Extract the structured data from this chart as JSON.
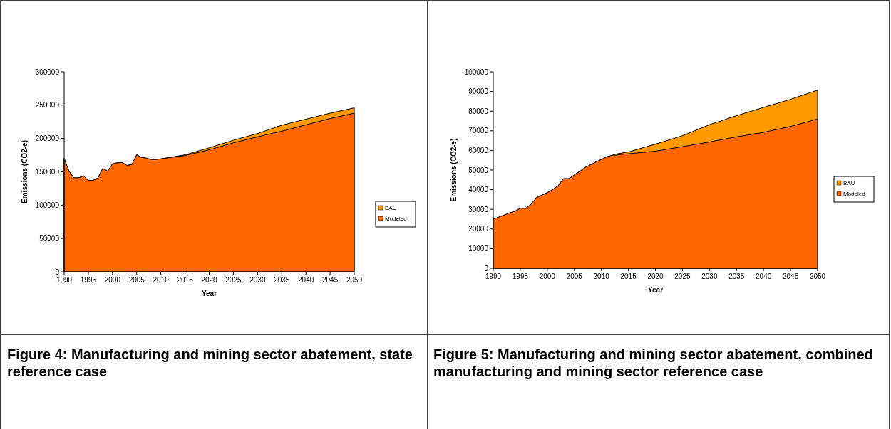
{
  "chart_data": [
    {
      "type": "area",
      "title": "Figure 4: Manufacturing and mining sector abatement, state reference case",
      "xlabel": "Year",
      "ylabel": "Emissions (CO2-e)",
      "legend": "right",
      "grid": false,
      "x": [
        1990,
        1991,
        1992,
        1993,
        1994,
        1995,
        1996,
        1997,
        1998,
        1999,
        2000,
        2001,
        2002,
        2003,
        2004,
        2005,
        2006,
        2007,
        2008,
        2009,
        2010,
        2015,
        2020,
        2025,
        2030,
        2035,
        2040,
        2045,
        2050
      ],
      "series": [
        {
          "name": "BAU",
          "color": "#ff9900",
          "values": [
            170000,
            151000,
            141000,
            141000,
            144000,
            137000,
            137000,
            141000,
            155000,
            151000,
            162000,
            163500,
            164000,
            159500,
            161000,
            175500,
            171500,
            170500,
            168500,
            168500,
            169500,
            175500,
            186000,
            197500,
            207500,
            220000,
            229000,
            238000,
            246000
          ]
        },
        {
          "name": "Modeled",
          "color": "#ff6600",
          "values": [
            170000,
            151000,
            141000,
            141000,
            144000,
            137000,
            137000,
            141000,
            155000,
            151000,
            162000,
            163500,
            164000,
            159500,
            161000,
            175500,
            171500,
            170500,
            168500,
            168500,
            169500,
            174500,
            183000,
            193500,
            202500,
            211000,
            220500,
            230000,
            238000
          ]
        }
      ],
      "xlim": [
        1990,
        2050
      ],
      "xticks": [
        1990,
        1995,
        2000,
        2005,
        2010,
        2015,
        2020,
        2025,
        2030,
        2035,
        2040,
        2045,
        2050
      ],
      "ylim": [
        0,
        300000
      ],
      "yticks": [
        0,
        50000,
        100000,
        150000,
        200000,
        250000,
        300000
      ]
    },
    {
      "type": "area",
      "title": "Figure 5: Manufacturing and mining sector abatement, combined manufacturing and mining sector reference case",
      "xlabel": "Year",
      "ylabel": "Emissions (CO2-e)",
      "legend": "right",
      "grid": false,
      "x": [
        1990,
        1991,
        1992,
        1993,
        1994,
        1995,
        1996,
        1997,
        1998,
        1999,
        2000,
        2001,
        2002,
        2003,
        2004,
        2005,
        2006,
        2007,
        2008,
        2009,
        2010,
        2011,
        2012,
        2013,
        2015,
        2020,
        2025,
        2030,
        2035,
        2040,
        2045,
        2050
      ],
      "series": [
        {
          "name": "BAU",
          "color": "#ff9900",
          "values": [
            25000,
            26000,
            27000,
            28200,
            29000,
            30500,
            30500,
            32500,
            36000,
            37200,
            38500,
            40000,
            42000,
            45600,
            45600,
            47500,
            49300,
            51300,
            52700,
            54100,
            55400,
            56700,
            57500,
            58300,
            59200,
            63200,
            67500,
            73100,
            77700,
            81900,
            86000,
            90700
          ]
        },
        {
          "name": "Modeled",
          "color": "#ff6600",
          "values": [
            25000,
            26000,
            27000,
            28200,
            29000,
            30500,
            30500,
            32500,
            36000,
            37200,
            38500,
            40000,
            42000,
            45600,
            45600,
            47500,
            49300,
            51300,
            52700,
            54100,
            55400,
            56700,
            57500,
            57700,
            58300,
            59600,
            61900,
            64300,
            66900,
            69200,
            72200,
            76000
          ]
        }
      ],
      "xlim": [
        1990,
        2050
      ],
      "xticks": [
        1990,
        1995,
        2000,
        2005,
        2010,
        2015,
        2020,
        2025,
        2030,
        2035,
        2040,
        2045,
        2050
      ],
      "ylim": [
        0,
        100000
      ],
      "yticks": [
        0,
        10000,
        20000,
        30000,
        40000,
        50000,
        60000,
        70000,
        80000,
        90000,
        100000
      ]
    }
  ]
}
